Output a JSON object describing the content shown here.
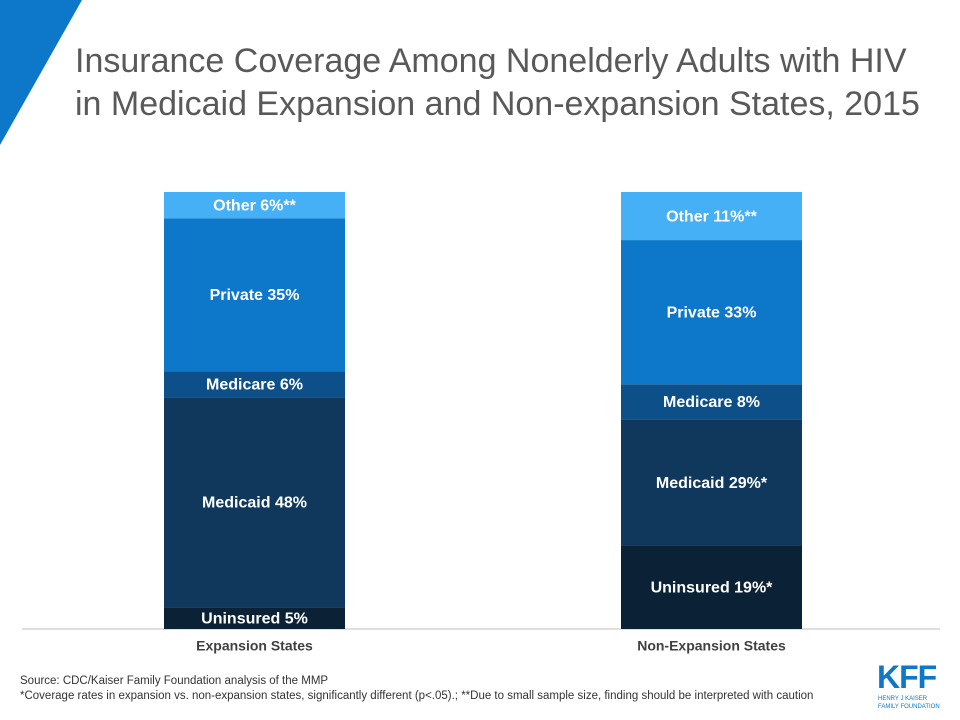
{
  "chart_data": {
    "type": "stacked-bar",
    "title": "Insurance Coverage Among Nonelderly Adults with HIV in Medicaid Expansion and Non-expansion States, 2015",
    "categories": [
      "Expansion States",
      "Non-Expansion States"
    ],
    "series": [
      {
        "color": "#0a2136",
        "values": [
          5,
          19
        ],
        "value_labels": [
          "Uninsured 5%",
          "Uninsured 19%*"
        ]
      },
      {
        "color": "#10385c",
        "values": [
          48,
          29
        ],
        "value_labels": [
          "Medicaid 48%",
          "Medicaid 29%*"
        ]
      },
      {
        "color": "#0d5089",
        "values": [
          6,
          8
        ],
        "value_labels": [
          "Medicare 6%",
          "Medicare 8%"
        ]
      },
      {
        "color": "#0d78ca",
        "values": [
          35,
          33
        ],
        "value_labels": [
          "Private 35%",
          "Private 33%"
        ]
      },
      {
        "color": "#45b0f5",
        "values": [
          6,
          11
        ],
        "value_labels": [
          "Other 6%**",
          "Other 11%**"
        ]
      }
    ]
  },
  "source": "Source: CDC/Kaiser Family Foundation analysis of the MMP",
  "note": "*Coverage rates in expansion vs. non-expansion states, significantly different (p<.05).; **Due to small sample size, finding should be interpreted with caution",
  "logo": {
    "mark": "KFF",
    "lines": [
      "HENRY J KAISER",
      "FAMILY FOUNDATION"
    ]
  }
}
